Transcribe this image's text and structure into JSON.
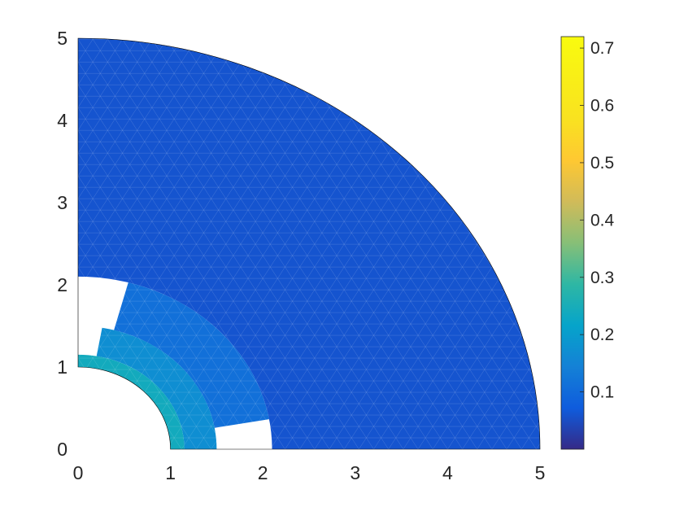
{
  "chart_data": {
    "type": "heatmap",
    "subtype": "triangular-mesh field on quarter annulus",
    "title": "",
    "xlabel": "",
    "ylabel": "",
    "xlim": [
      0,
      5
    ],
    "ylim": [
      0,
      5
    ],
    "x_ticks": [
      "0",
      "1",
      "2",
      "3",
      "4",
      "5"
    ],
    "y_ticks": [
      "0",
      "1",
      "2",
      "3",
      "4",
      "5"
    ],
    "domain": {
      "shape": "quarter annulus",
      "inner_radius": 1,
      "outer_radius": 5
    },
    "colormap": "parula",
    "color_range": [
      0.0,
      0.72
    ],
    "colorbar_ticks": [
      "0.1",
      "0.2",
      "0.3",
      "0.4",
      "0.5",
      "0.6",
      "0.7"
    ],
    "colorbar_placement": "right",
    "grid": false,
    "field_regions": [
      {
        "r_min": 1.0,
        "r_max": 1.15,
        "theta_deg_min": 0,
        "theta_deg_max": 90,
        "value": 0.24
      },
      {
        "r_min": 1.15,
        "r_max": 1.5,
        "theta_deg_min": 0,
        "theta_deg_max": 80,
        "value": 0.17
      },
      {
        "r_min": 1.5,
        "r_max": 2.1,
        "theta_deg_min": 10,
        "theta_deg_max": 75,
        "value": 0.11
      },
      {
        "r_min": 2.1,
        "r_max": 5.0,
        "theta_deg_min": 0,
        "theta_deg_max": 90,
        "value": 0.06
      }
    ],
    "mesh_edge_color": "#ffffff"
  }
}
